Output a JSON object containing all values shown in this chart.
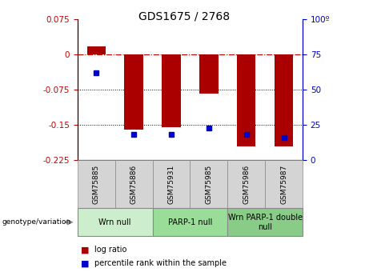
{
  "title": "GDS1675 / 2768",
  "samples": [
    "GSM75885",
    "GSM75886",
    "GSM75931",
    "GSM75985",
    "GSM75986",
    "GSM75987"
  ],
  "log_ratio": [
    0.018,
    -0.16,
    -0.155,
    -0.083,
    -0.195,
    -0.195
  ],
  "percentile_rank": [
    62,
    18,
    18,
    23,
    18,
    16
  ],
  "groups": [
    {
      "label": "Wrn null",
      "start": 0,
      "end": 2,
      "color": "#cceecc"
    },
    {
      "label": "PARP-1 null",
      "start": 2,
      "end": 4,
      "color": "#99dd99"
    },
    {
      "label": "Wrn PARP-1 double\nnull",
      "start": 4,
      "end": 6,
      "color": "#88cc88"
    }
  ],
  "ylim_left": [
    -0.225,
    0.075
  ],
  "ylim_right": [
    0,
    100
  ],
  "yticks_left": [
    0.075,
    0,
    -0.075,
    -0.15,
    -0.225
  ],
  "yticks_right": [
    100,
    75,
    50,
    25,
    0
  ],
  "bar_color": "#aa0000",
  "dot_color": "#0000cc",
  "hline_color": "#cc0000",
  "dotted_line_color": "#000000",
  "plot_bg_color": "#ffffff",
  "sample_box_color": "#d4d4d4",
  "left_axis_color": "#cc0000",
  "right_axis_color": "#0000cc",
  "title_fontsize": 10,
  "tick_fontsize": 7.5,
  "sample_fontsize": 6.5,
  "group_fontsize": 7,
  "legend_fontsize": 7
}
